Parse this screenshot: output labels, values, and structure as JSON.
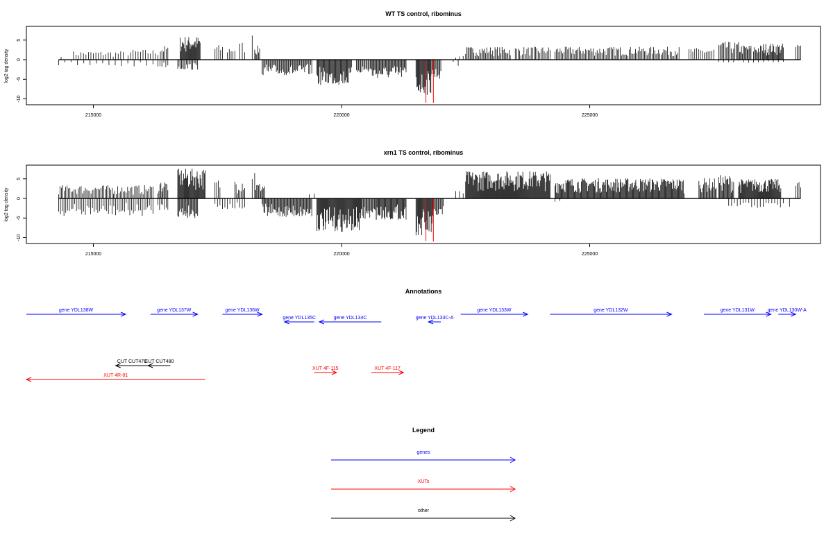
{
  "chart_data": [
    {
      "type": "bar",
      "title": "WT TS control, ribominus",
      "ylabel": "log2 tag density",
      "xlim": [
        213650,
        229650
      ],
      "ylim": [
        -11.5,
        8.5
      ],
      "yticks": [
        -10,
        -5,
        0,
        5
      ],
      "ytick_labels": [
        "-10",
        "-5",
        "0",
        "5"
      ],
      "xticks": [
        215000,
        220000,
        225000
      ],
      "xtick_labels": [
        "215000",
        "220000",
        "225000"
      ],
      "grid": false,
      "colors": {
        "bars": "#000000",
        "highlight": "#ff0000",
        "axis": "#000000"
      },
      "plus_segments": [
        {
          "start": 214300,
          "end": 214400,
          "peak": 2.8,
          "density": 0.18
        },
        {
          "start": 214600,
          "end": 215600,
          "peak": 2.2,
          "density": 0.3
        },
        {
          "start": 215700,
          "end": 216300,
          "peak": 2.6,
          "density": 0.3
        },
        {
          "start": 216350,
          "end": 216500,
          "peak": 3.6,
          "density": 0.6
        },
        {
          "start": 216750,
          "end": 217150,
          "peak": 6.0,
          "density": 1.0
        },
        {
          "start": 217450,
          "end": 217600,
          "peak": 3.8,
          "density": 0.5
        },
        {
          "start": 217700,
          "end": 217850,
          "peak": 3.5,
          "density": 0.5
        },
        {
          "start": 217950,
          "end": 218050,
          "peak": 4.6,
          "density": 0.4
        },
        {
          "start": 218200,
          "end": 218250,
          "peak": 6.8,
          "density": 0.6
        },
        {
          "start": 218250,
          "end": 218350,
          "peak": 3.6,
          "density": 0.8
        },
        {
          "start": 222300,
          "end": 222450,
          "peak": 1.2,
          "density": 0.3
        },
        {
          "start": 222500,
          "end": 223400,
          "peak": 3.3,
          "density": 0.6
        },
        {
          "start": 223500,
          "end": 224200,
          "peak": 3.3,
          "density": 0.5
        },
        {
          "start": 224300,
          "end": 226800,
          "peak": 3.3,
          "density": 0.55
        },
        {
          "start": 227000,
          "end": 227500,
          "peak": 3.0,
          "density": 0.4
        },
        {
          "start": 227600,
          "end": 228000,
          "peak": 4.6,
          "density": 0.6
        },
        {
          "start": 228000,
          "end": 228250,
          "peak": 3.8,
          "density": 0.8
        },
        {
          "start": 228300,
          "end": 228500,
          "peak": 3.8,
          "density": 0.8
        },
        {
          "start": 228500,
          "end": 228900,
          "peak": 4.2,
          "density": 0.9
        },
        {
          "start": 229150,
          "end": 229250,
          "peak": 4.2,
          "density": 0.5
        }
      ],
      "minus_segments": [
        {
          "start": 214300,
          "end": 216200,
          "peak": -1.8,
          "density": 0.12
        },
        {
          "start": 216300,
          "end": 216500,
          "peak": -2.0,
          "density": 0.4
        },
        {
          "start": 216700,
          "end": 217100,
          "peak": -2.6,
          "density": 0.6
        },
        {
          "start": 218400,
          "end": 219400,
          "peak": -4.0,
          "density": 0.7
        },
        {
          "start": 219500,
          "end": 220200,
          "peak": -6.5,
          "density": 0.9
        },
        {
          "start": 220300,
          "end": 220600,
          "peak": -3.5,
          "density": 0.7
        },
        {
          "start": 220600,
          "end": 221300,
          "peak": -4.8,
          "density": 0.8
        },
        {
          "start": 221500,
          "end": 221800,
          "peak": -9.0,
          "density": 1.0
        },
        {
          "start": 221800,
          "end": 222000,
          "peak": -5.0,
          "density": 0.8
        },
        {
          "start": 222250,
          "end": 222350,
          "peak": -1.8,
          "density": 0.3
        },
        {
          "start": 227600,
          "end": 228900,
          "peak": -0.8,
          "density": 0.15
        }
      ],
      "highlight_lines": [
        {
          "x": 221700,
          "y": -11
        },
        {
          "x": 221850,
          "y": -11
        }
      ]
    },
    {
      "type": "bar",
      "title": "xrn1 TS control, ribominus",
      "ylabel": "log2 tag density",
      "xlim": [
        213650,
        229650
      ],
      "ylim": [
        -11.5,
        8.5
      ],
      "yticks": [
        -10,
        -5,
        0,
        5
      ],
      "ytick_labels": [
        "-10",
        "-5",
        "0",
        "5"
      ],
      "xticks": [
        215000,
        220000,
        225000
      ],
      "xtick_labels": [
        "215000",
        "220000",
        "225000"
      ],
      "grid": false,
      "colors": {
        "bars": "#000000",
        "highlight": "#ff0000",
        "axis": "#000000"
      },
      "plus_segments": [
        {
          "start": 214300,
          "end": 216200,
          "peak": 3.4,
          "density": 0.5
        },
        {
          "start": 216300,
          "end": 216500,
          "peak": 4.6,
          "density": 0.8
        },
        {
          "start": 216700,
          "end": 217250,
          "peak": 7.6,
          "density": 1.0
        },
        {
          "start": 217450,
          "end": 217550,
          "peak": 5.0,
          "density": 0.6
        },
        {
          "start": 217850,
          "end": 218050,
          "peak": 5.2,
          "density": 0.6
        },
        {
          "start": 218200,
          "end": 218250,
          "peak": 8.0,
          "density": 0.6
        },
        {
          "start": 218250,
          "end": 218450,
          "peak": 4.0,
          "density": 0.8
        },
        {
          "start": 219350,
          "end": 219450,
          "peak": 1.6,
          "density": 0.3
        },
        {
          "start": 222300,
          "end": 222450,
          "peak": 2.0,
          "density": 0.3
        },
        {
          "start": 222500,
          "end": 224200,
          "peak": 7.0,
          "density": 1.0
        },
        {
          "start": 224300,
          "end": 226900,
          "peak": 5.2,
          "density": 0.9
        },
        {
          "start": 227200,
          "end": 227550,
          "peak": 5.2,
          "density": 0.8
        },
        {
          "start": 227600,
          "end": 227900,
          "peak": 6.0,
          "density": 0.9
        },
        {
          "start": 228000,
          "end": 228850,
          "peak": 5.0,
          "density": 1.0
        },
        {
          "start": 229150,
          "end": 229250,
          "peak": 4.5,
          "density": 0.5
        }
      ],
      "minus_segments": [
        {
          "start": 214300,
          "end": 216200,
          "peak": -4.5,
          "density": 0.4
        },
        {
          "start": 216300,
          "end": 216500,
          "peak": -3.0,
          "density": 0.5
        },
        {
          "start": 216700,
          "end": 217100,
          "peak": -5.0,
          "density": 0.8
        },
        {
          "start": 217450,
          "end": 218050,
          "peak": -2.8,
          "density": 0.3
        },
        {
          "start": 218400,
          "end": 219400,
          "peak": -4.8,
          "density": 0.8
        },
        {
          "start": 219500,
          "end": 220400,
          "peak": -8.5,
          "density": 1.0
        },
        {
          "start": 220400,
          "end": 220700,
          "peak": -5.5,
          "density": 0.8
        },
        {
          "start": 220700,
          "end": 221300,
          "peak": -5.5,
          "density": 0.9
        },
        {
          "start": 221500,
          "end": 221850,
          "peak": -9.5,
          "density": 1.0
        },
        {
          "start": 221850,
          "end": 222050,
          "peak": -5.0,
          "density": 0.8
        },
        {
          "start": 224300,
          "end": 224400,
          "peak": -2.0,
          "density": 0.3
        },
        {
          "start": 227800,
          "end": 228900,
          "peak": -2.5,
          "density": 0.25
        },
        {
          "start": 229000,
          "end": 229050,
          "peak": -3.2,
          "density": 0.3
        }
      ],
      "highlight_lines": [
        {
          "x": 221700,
          "y": -10.8
        },
        {
          "x": 221850,
          "y": -11
        }
      ]
    }
  ],
  "annotations": {
    "title": "Annotations",
    "colors": {
      "genes": "#0000ff",
      "XUTs": "#ff0000",
      "other": "#000000"
    },
    "items": [
      {
        "label": "gene YDL138W",
        "start": 213650,
        "end": 215650,
        "strand": "+",
        "row": 0,
        "kind": "genes"
      },
      {
        "label": "gene YDL137W",
        "start": 216150,
        "end": 217100,
        "strand": "+",
        "row": 0,
        "kind": "genes"
      },
      {
        "label": "gene YDL136W",
        "start": 217600,
        "end": 218400,
        "strand": "+",
        "row": 0,
        "kind": "genes"
      },
      {
        "label": "gene YDL135C",
        "start": 218850,
        "end": 219450,
        "strand": "-",
        "row": 1,
        "kind": "genes"
      },
      {
        "label": "gene YDL134C",
        "start": 219550,
        "end": 220800,
        "strand": "-",
        "row": 1,
        "kind": "genes"
      },
      {
        "label": "gene YDL133C-A",
        "start": 221750,
        "end": 222000,
        "strand": "-",
        "row": 1,
        "kind": "genes"
      },
      {
        "label": "gene YDL133W",
        "start": 222400,
        "end": 223750,
        "strand": "+",
        "row": 0,
        "kind": "genes"
      },
      {
        "label": "gene YDL132W",
        "start": 224200,
        "end": 226650,
        "strand": "+",
        "row": 0,
        "kind": "genes"
      },
      {
        "label": "gene YDL131W",
        "start": 227300,
        "end": 228650,
        "strand": "+",
        "row": 0,
        "kind": "genes"
      },
      {
        "label": "gene YDL130W-A",
        "start": 228800,
        "end": 229150,
        "strand": "+",
        "row": 0,
        "kind": "genes"
      },
      {
        "label": "CUT CUT479",
        "start": 215450,
        "end": 216100,
        "strand": "-",
        "row": 2,
        "kind": "other"
      },
      {
        "label": "CUT CUT480",
        "start": 216100,
        "end": 216550,
        "strand": "-",
        "row": 2,
        "kind": "other"
      },
      {
        "label": "XUT 4R-81",
        "start": 213650,
        "end": 217250,
        "strand": "-",
        "row": 4,
        "kind": "XUTs"
      },
      {
        "label": "XUT 4F-115",
        "start": 219450,
        "end": 219900,
        "strand": "+",
        "row": 3,
        "kind": "XUTs"
      },
      {
        "label": "XUT 4F-117",
        "start": 220600,
        "end": 221250,
        "strand": "+",
        "row": 3,
        "kind": "XUTs"
      }
    ]
  },
  "legend": {
    "title": "Legend",
    "entries": [
      {
        "label": "genes",
        "kind": "genes"
      },
      {
        "label": "XUTs",
        "kind": "XUTs"
      },
      {
        "label": "other",
        "kind": "other"
      }
    ]
  }
}
